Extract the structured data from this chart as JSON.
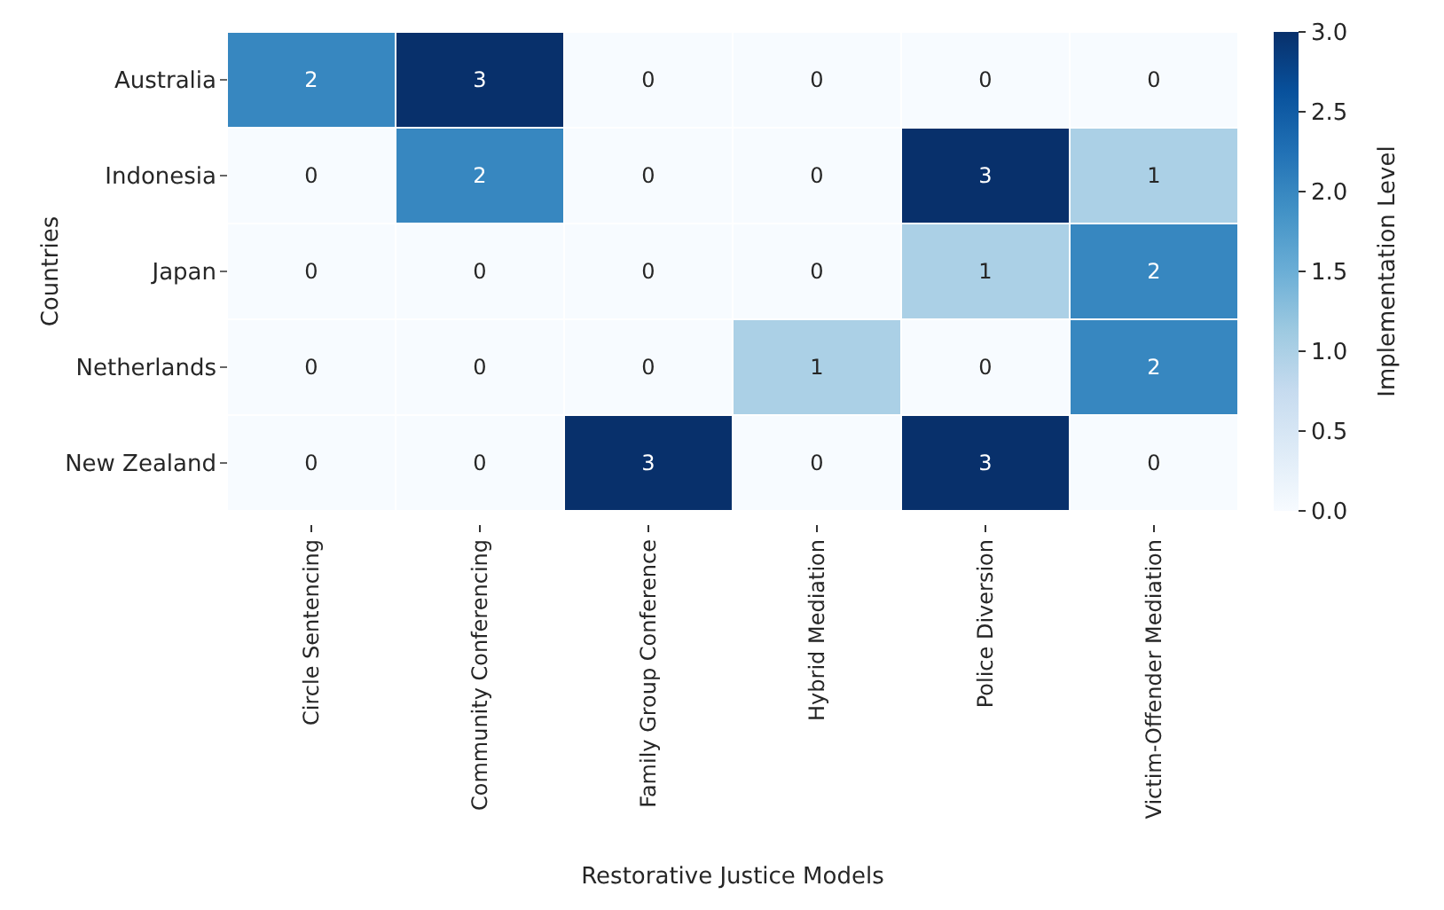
{
  "chart_data": {
    "type": "heatmap",
    "xlabel": "Restorative Justice Models",
    "ylabel": "Countries",
    "clabel": "Implementation Level",
    "categories": [
      "Circle Sentencing",
      "Community Conferencing",
      "Family Group Conference",
      "Hybrid Mediation",
      "Police Diversion",
      "Victim-Offender Mediation"
    ],
    "y_categories": [
      "Australia",
      "Indonesia",
      "Japan",
      "Netherlands",
      "New Zealand"
    ],
    "cells": [
      [
        2,
        3,
        0,
        0,
        0,
        0
      ],
      [
        0,
        2,
        0,
        0,
        3,
        1
      ],
      [
        0,
        0,
        0,
        0,
        1,
        2
      ],
      [
        0,
        0,
        0,
        1,
        0,
        2
      ],
      [
        0,
        0,
        3,
        0,
        3,
        0
      ]
    ],
    "clim": [
      0,
      3
    ],
    "cticks": [
      {
        "value": 0,
        "label": "0.0"
      },
      {
        "value": 0.5,
        "label": "0.5"
      },
      {
        "value": 1,
        "label": "1.0"
      },
      {
        "value": 1.5,
        "label": "1.5"
      },
      {
        "value": 2,
        "label": "2.0"
      },
      {
        "value": 2.5,
        "label": "2.5"
      },
      {
        "value": 3,
        "label": "3.0"
      }
    ],
    "data_labels": true
  }
}
